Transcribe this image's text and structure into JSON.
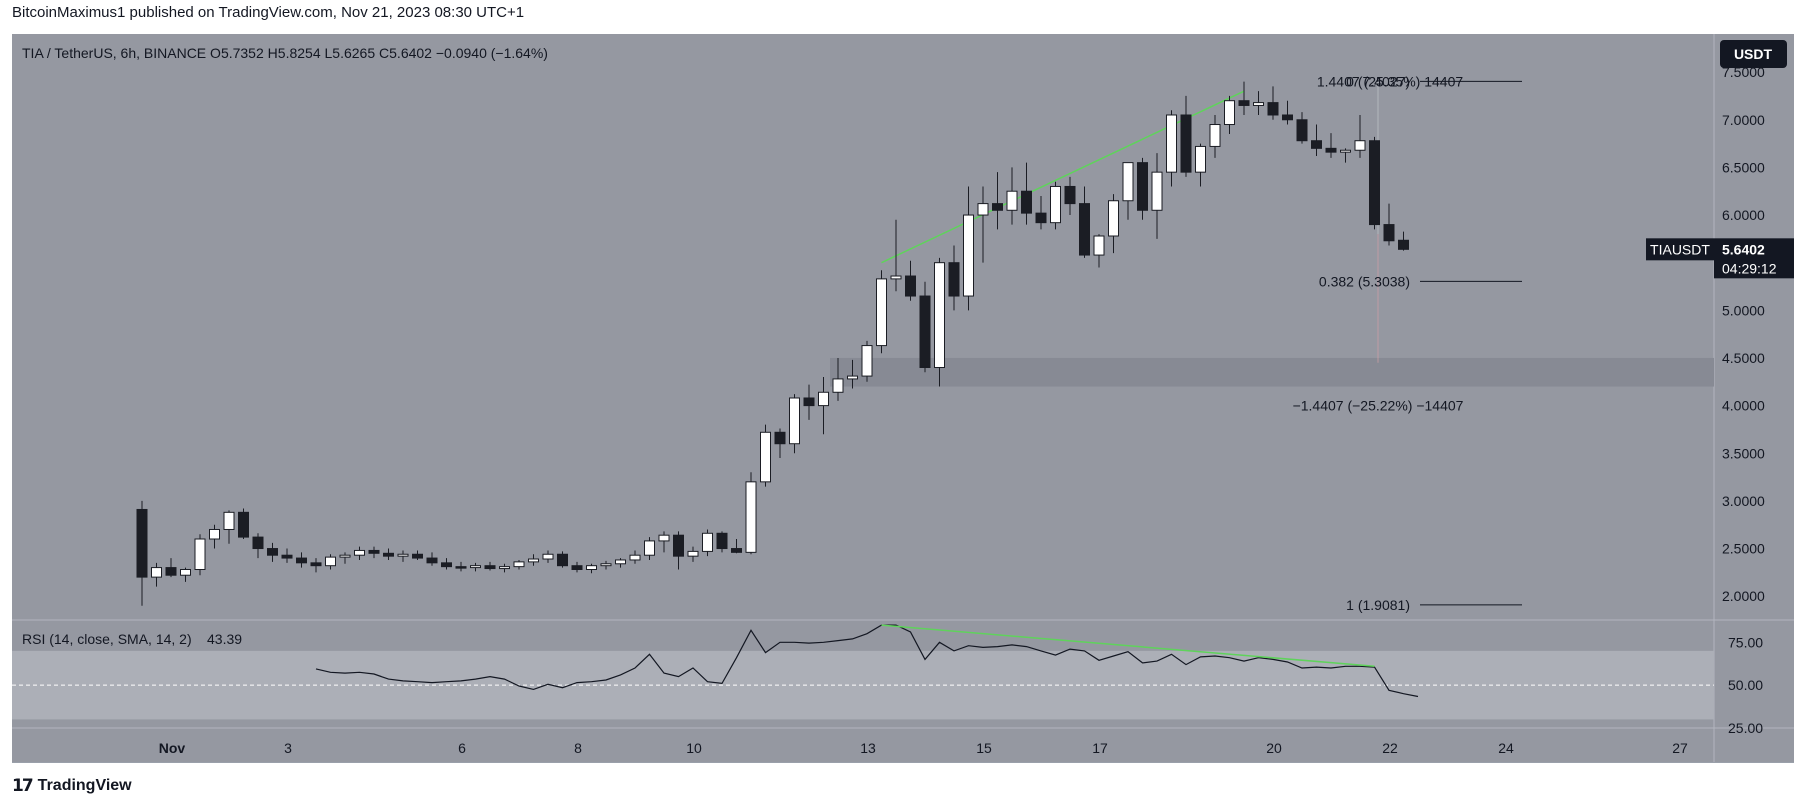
{
  "header": {
    "published_line": "BitcoinMaximus1 published on TradingView.com, Nov 21, 2023 08:30 UTC+1",
    "symbol_line": "TIA / TetherUS, 6h, BINANCE",
    "ohlc": {
      "o_label": "O",
      "o": "5.7352",
      "h_label": "H",
      "h": "5.8254",
      "l_label": "L",
      "l": "5.6265",
      "c_label": "C",
      "c": "5.6402",
      "change": "−0.0940 (−1.64%)"
    },
    "currency_button": "USDT"
  },
  "price_tag": {
    "symbol": "TIAUSDT",
    "price": "5.6402",
    "countdown": "04:29:12"
  },
  "footer": {
    "brand": "TradingView",
    "logo_mark": "17"
  },
  "colors": {
    "pane_bg": "#9598a1",
    "band": "#878a94",
    "rsi_band": "#acafb7",
    "up_candle": "#ffffff",
    "down_candle": "#1b1d24",
    "trendline": "#5fd35b",
    "rsi_line": "#131722"
  },
  "chart_data": [
    {
      "type": "candlestick",
      "title": "TIA / TetherUS, 6h, BINANCE",
      "ylim": [
        1.75,
        7.9
      ],
      "y_ticks": [
        "7.5000",
        "7.0000",
        "6.5000",
        "6.0000",
        "5.5000",
        "5.0000",
        "4.5000",
        "4.0000",
        "3.5000",
        "3.0000",
        "2.5000",
        "2.0000"
      ],
      "x_ticks": [
        {
          "label": "Nov",
          "day": 1
        },
        {
          "label": "3",
          "day": 3
        },
        {
          "label": "6",
          "day": 6
        },
        {
          "label": "8",
          "day": 8
        },
        {
          "label": "10",
          "day": 10
        },
        {
          "label": "13",
          "day": 13
        },
        {
          "label": "15",
          "day": 15
        },
        {
          "label": "17",
          "day": 17
        },
        {
          "label": "20",
          "day": 20
        },
        {
          "label": "22",
          "day": 22
        },
        {
          "label": "24",
          "day": 24
        },
        {
          "label": "27",
          "day": 27
        }
      ],
      "candles": [
        [
          2.91,
          3.0,
          1.9,
          2.2
        ],
        [
          2.2,
          2.35,
          2.1,
          2.3
        ],
        [
          2.3,
          2.4,
          2.2,
          2.22
        ],
        [
          2.22,
          2.3,
          2.15,
          2.28
        ],
        [
          2.28,
          2.65,
          2.22,
          2.6
        ],
        [
          2.6,
          2.75,
          2.5,
          2.7
        ],
        [
          2.7,
          2.9,
          2.55,
          2.88
        ],
        [
          2.88,
          2.92,
          2.6,
          2.62
        ],
        [
          2.62,
          2.66,
          2.4,
          2.5
        ],
        [
          2.5,
          2.56,
          2.36,
          2.43
        ],
        [
          2.43,
          2.5,
          2.35,
          2.4
        ],
        [
          2.4,
          2.46,
          2.3,
          2.35
        ],
        [
          2.35,
          2.4,
          2.25,
          2.32
        ],
        [
          2.32,
          2.44,
          2.28,
          2.41
        ],
        [
          2.41,
          2.46,
          2.34,
          2.43
        ],
        [
          2.43,
          2.52,
          2.38,
          2.48
        ],
        [
          2.48,
          2.52,
          2.4,
          2.45
        ],
        [
          2.45,
          2.5,
          2.38,
          2.42
        ],
        [
          2.42,
          2.48,
          2.36,
          2.44
        ],
        [
          2.44,
          2.48,
          2.38,
          2.4
        ],
        [
          2.4,
          2.46,
          2.32,
          2.35
        ],
        [
          2.35,
          2.4,
          2.28,
          2.31
        ],
        [
          2.31,
          2.36,
          2.26,
          2.3
        ],
        [
          2.3,
          2.35,
          2.26,
          2.32
        ],
        [
          2.32,
          2.36,
          2.27,
          2.29
        ],
        [
          2.29,
          2.34,
          2.25,
          2.31
        ],
        [
          2.31,
          2.38,
          2.28,
          2.36
        ],
        [
          2.36,
          2.44,
          2.32,
          2.39
        ],
        [
          2.39,
          2.48,
          2.35,
          2.44
        ],
        [
          2.44,
          2.47,
          2.3,
          2.32
        ],
        [
          2.32,
          2.36,
          2.25,
          2.28
        ],
        [
          2.28,
          2.34,
          2.24,
          2.32
        ],
        [
          2.32,
          2.37,
          2.28,
          2.34
        ],
        [
          2.34,
          2.4,
          2.3,
          2.38
        ],
        [
          2.38,
          2.48,
          2.34,
          2.43
        ],
        [
          2.43,
          2.62,
          2.38,
          2.58
        ],
        [
          2.58,
          2.68,
          2.46,
          2.64
        ],
        [
          2.64,
          2.68,
          2.28,
          2.42
        ],
        [
          2.42,
          2.52,
          2.36,
          2.47
        ],
        [
          2.47,
          2.7,
          2.42,
          2.66
        ],
        [
          2.66,
          2.68,
          2.46,
          2.5
        ],
        [
          2.5,
          2.6,
          2.45,
          2.46
        ],
        [
          2.46,
          3.3,
          2.44,
          3.2
        ],
        [
          3.2,
          3.8,
          3.15,
          3.72
        ],
        [
          3.72,
          3.76,
          3.45,
          3.6
        ],
        [
          3.6,
          4.12,
          3.5,
          4.08
        ],
        [
          4.08,
          4.22,
          3.85,
          4.0
        ],
        [
          4.0,
          4.3,
          3.7,
          4.14
        ],
        [
          4.14,
          4.5,
          4.05,
          4.28
        ],
        [
          4.28,
          4.48,
          4.18,
          4.31
        ],
        [
          4.31,
          4.68,
          4.25,
          4.63
        ],
        [
          4.63,
          5.42,
          4.55,
          5.33
        ],
        [
          5.33,
          5.95,
          5.2,
          5.36
        ],
        [
          5.36,
          5.52,
          5.1,
          5.15
        ],
        [
          5.15,
          5.3,
          4.35,
          4.4
        ],
        [
          4.4,
          5.55,
          4.2,
          5.5
        ],
        [
          5.5,
          5.68,
          5.0,
          5.15
        ],
        [
          5.15,
          6.3,
          5.0,
          6.0
        ],
        [
          6.0,
          6.3,
          5.5,
          6.12
        ],
        [
          6.12,
          6.45,
          5.85,
          6.05
        ],
        [
          6.05,
          6.5,
          5.9,
          6.25
        ],
        [
          6.25,
          6.55,
          5.9,
          6.02
        ],
        [
          6.02,
          6.2,
          5.85,
          5.92
        ],
        [
          5.92,
          6.35,
          5.85,
          6.3
        ],
        [
          6.3,
          6.4,
          6.0,
          6.12
        ],
        [
          6.12,
          6.3,
          5.55,
          5.58
        ],
        [
          5.58,
          5.8,
          5.45,
          5.78
        ],
        [
          5.78,
          6.22,
          5.6,
          6.15
        ],
        [
          6.15,
          6.55,
          5.95,
          6.55
        ],
        [
          6.55,
          6.6,
          5.95,
          6.05
        ],
        [
          6.05,
          6.65,
          5.75,
          6.45
        ],
        [
          6.45,
          7.1,
          6.3,
          7.05
        ],
        [
          7.05,
          7.25,
          6.4,
          6.45
        ],
        [
          6.45,
          6.75,
          6.3,
          6.72
        ],
        [
          6.72,
          7.05,
          6.6,
          6.95
        ],
        [
          6.95,
          7.25,
          6.85,
          7.2
        ],
        [
          7.2,
          7.4,
          7.05,
          7.15
        ],
        [
          7.15,
          7.3,
          7.05,
          7.18
        ],
        [
          7.18,
          7.35,
          7.0,
          7.05
        ],
        [
          7.05,
          7.2,
          6.95,
          7.0
        ],
        [
          7.0,
          7.08,
          6.75,
          6.78
        ],
        [
          6.78,
          6.95,
          6.62,
          6.7
        ],
        [
          6.7,
          6.86,
          6.6,
          6.66
        ],
        [
          6.66,
          6.7,
          6.55,
          6.68
        ],
        [
          6.68,
          7.05,
          6.6,
          6.78
        ],
        [
          6.78,
          6.82,
          5.85,
          5.9
        ],
        [
          5.9,
          6.12,
          5.68,
          5.73
        ],
        [
          5.7352,
          5.8254,
          5.6265,
          5.6402
        ]
      ],
      "fibonacci": [
        {
          "label": "0 (7.4027)",
          "price": 7.4027
        },
        {
          "label": "0.382 (5.3038)",
          "price": 5.3038
        },
        {
          "label": "1 (1.9081)",
          "price": 1.9081
        }
      ],
      "measure_labels": [
        {
          "label": "1.4407 (25.35%) 14407",
          "price": 7.4
        },
        {
          "label": "−1.4407 (−25.22%) −14407",
          "price": 4.0
        }
      ],
      "support_zone": [
        4.2,
        4.5
      ],
      "trendline": {
        "from": [
          51,
          5.5
        ],
        "to": [
          76,
          7.3
        ]
      }
    },
    {
      "type": "line",
      "title": "RSI (14, close, SMA, 14, 2)",
      "value_label": "43.39",
      "ylim": [
        25,
        88
      ],
      "y_ticks": [
        "75.00",
        "50.00",
        "25.00"
      ],
      "band": [
        30,
        70
      ],
      "midline": 50,
      "start_index": 12,
      "values": [
        59.5,
        57.5,
        57,
        57.5,
        56.5,
        53.5,
        52.5,
        52,
        51.5,
        52,
        52.5,
        53.5,
        55,
        53.5,
        49.5,
        47.5,
        50.5,
        48.5,
        51.5,
        52,
        53,
        56,
        60,
        68,
        57,
        55,
        60,
        52,
        51,
        66,
        82,
        69,
        75,
        75,
        74.5,
        75,
        76,
        77,
        80,
        85,
        85,
        81,
        65,
        75,
        70,
        73,
        72,
        72.5,
        73.5,
        72.5,
        70,
        67.5,
        71,
        70,
        64.5,
        67,
        69.5,
        63,
        64,
        68,
        62,
        66.5,
        67,
        66,
        64,
        66,
        65,
        63.5,
        60,
        60.5,
        60,
        61,
        61,
        60.5,
        47,
        45,
        43.39
      ],
      "divergence_line": {
        "from": [
          51,
          85
        ],
        "to": [
          85,
          61
        ]
      }
    }
  ]
}
